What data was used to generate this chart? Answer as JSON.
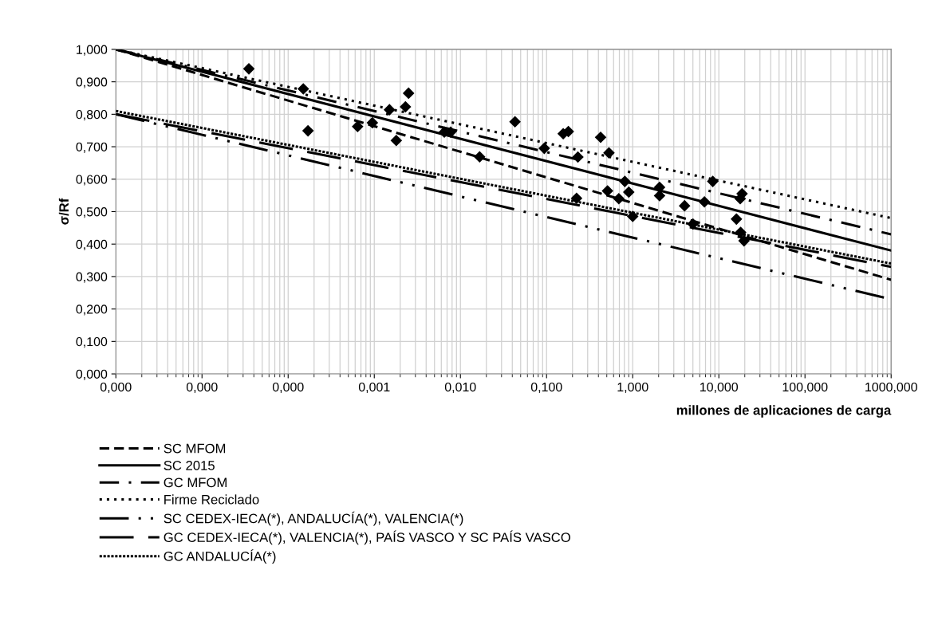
{
  "chart_data": {
    "type": "line",
    "xlabel": "millones de aplicaciones de carga",
    "ylabel": "σ/Rf",
    "log": "x",
    "grid": true,
    "legend": "bottom",
    "xlim": [
      1e-06,
      1000
    ],
    "xticks": [
      {
        "value": 1e-06,
        "label": "0,000"
      },
      {
        "value": 1e-05,
        "label": "0,000"
      },
      {
        "value": 0.0001,
        "label": "0,000"
      },
      {
        "value": 0.001,
        "label": "0,001"
      },
      {
        "value": 0.01,
        "label": "0,010"
      },
      {
        "value": 0.1,
        "label": "0,100"
      },
      {
        "value": 1,
        "label": "1,000"
      },
      {
        "value": 10,
        "label": "10,000"
      },
      {
        "value": 100,
        "label": "100,000"
      },
      {
        "value": 1000,
        "label": "1000,000"
      }
    ],
    "ylim": [
      0,
      1
    ],
    "yticks": [
      {
        "value": 0,
        "label": "0,000"
      },
      {
        "value": 0.1,
        "label": "0,100"
      },
      {
        "value": 0.2,
        "label": "0,200"
      },
      {
        "value": 0.3,
        "label": "0,300"
      },
      {
        "value": 0.4,
        "label": "0,400"
      },
      {
        "value": 0.5,
        "label": "0,500"
      },
      {
        "value": 0.6,
        "label": "0,600"
      },
      {
        "value": 0.7,
        "label": "0,700"
      },
      {
        "value": 0.8,
        "label": "0,800"
      },
      {
        "value": 0.9,
        "label": "0,900"
      },
      {
        "value": 1,
        "label": "1,000"
      }
    ],
    "series": [
      {
        "type": "scatter",
        "marker": "diamond",
        "color": "#000000",
        "x": [
          3.5e-05,
          0.00015,
          0.00017,
          0.00064,
          0.00095,
          0.0015,
          0.0025,
          0.0023,
          0.0018,
          0.0065,
          0.0077,
          0.0167,
          0.043,
          0.094,
          0.156,
          0.179,
          0.231,
          0.223,
          0.424,
          0.53,
          0.51,
          0.69,
          0.81,
          0.9,
          1.0,
          2.05,
          2.05,
          4.0,
          4.6,
          5.0,
          6.8,
          8.5,
          16,
          18.6,
          17.7,
          17.9,
          19.6
        ],
        "values": [
          0.94,
          0.878,
          0.749,
          0.762,
          0.774,
          0.814,
          0.865,
          0.823,
          0.719,
          0.745,
          0.745,
          0.669,
          0.777,
          0.695,
          0.74,
          0.747,
          0.668,
          0.541,
          0.729,
          0.681,
          0.564,
          0.54,
          0.593,
          0.56,
          0.485,
          0.575,
          0.549,
          0.518,
          null,
          0.462,
          0.53,
          0.593,
          0.477,
          0.555,
          0.54,
          0.436,
          0.41
        ]
      },
      {
        "name": "SC MFOM",
        "line_style": "dashed",
        "color": "#000000",
        "x": [
          1e-06,
          1000
        ],
        "values": [
          1.0,
          0.29
        ]
      },
      {
        "name": "SC 2015",
        "line_style": "solid",
        "color": "#000000",
        "x": [
          1e-06,
          1000
        ],
        "values": [
          1.0,
          0.38
        ]
      },
      {
        "name": "GC MFOM",
        "line_style": "dashdot",
        "color": "#000000",
        "x": [
          1e-06,
          1000
        ],
        "values": [
          1.0,
          0.43
        ]
      },
      {
        "name": "Firme Reciclado",
        "line_style": "dotted",
        "color": "#000000",
        "x": [
          1e-06,
          1000
        ],
        "values": [
          1.0,
          0.48
        ]
      },
      {
        "name": "SC CEDEX-IECA(*), ANDALUCÍA(*), VALENCIA(*)",
        "line_style": "dashdotdot",
        "color": "#000000",
        "x": [
          1e-06,
          1000
        ],
        "values": [
          0.8,
          0.23
        ]
      },
      {
        "name": "GC CEDEX-IECA(*), VALENCIA(*), PAÍS VASCO Y SC PAÍS VASCO",
        "line_style": "longdash",
        "color": "#000000",
        "x": [
          1e-06,
          1000
        ],
        "values": [
          0.8,
          0.33
        ]
      },
      {
        "name": "GC ANDALUCÍA(*)",
        "line_style": "squaredot",
        "color": "#000000",
        "x": [
          1e-06,
          1000
        ],
        "values": [
          0.81,
          0.34
        ]
      }
    ]
  }
}
